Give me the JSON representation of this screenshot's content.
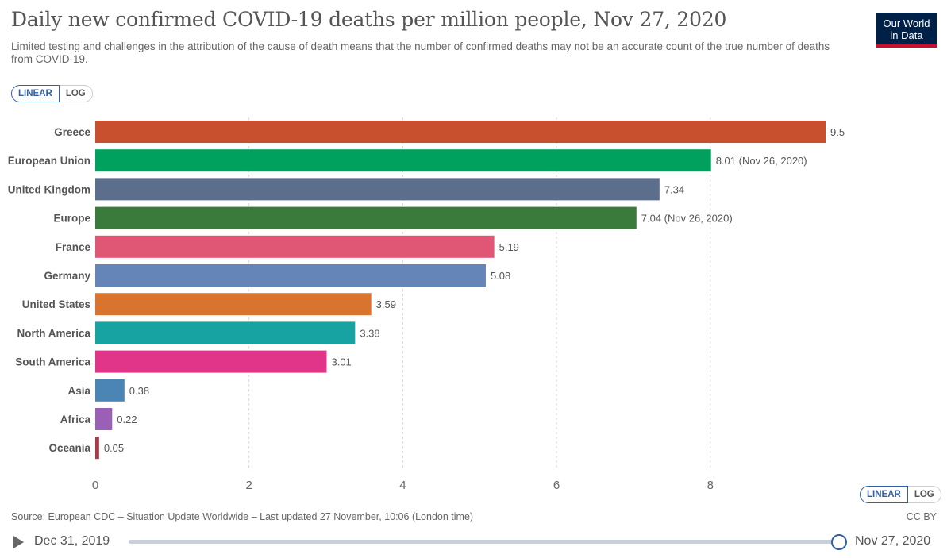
{
  "header": {
    "title": "Daily new confirmed COVID-19 deaths per million people, Nov 27, 2020",
    "subtitle": "Limited testing and challenges in the attribution of the cause of death means that the number of confirmed deaths may not be an accurate count of the true number of deaths from COVID-19.",
    "logo_line1": "Our World",
    "logo_line2": "in Data"
  },
  "controls": {
    "linear_label": "LINEAR",
    "log_label": "LOG"
  },
  "footer": {
    "source": "Source: European CDC – Situation Update Worldwide – Last updated 27 November, 10:06 (London time)",
    "license": "CC BY"
  },
  "timeline": {
    "start_label": "Dec 31, 2019",
    "end_label": "Nov 27, 2020",
    "position": 1.0
  },
  "chart_data": {
    "type": "bar",
    "orientation": "horizontal",
    "title": "Daily new confirmed COVID-19 deaths per million people, Nov 27, 2020",
    "xlabel": "",
    "ylabel": "",
    "xlim": [
      0,
      9.5
    ],
    "xticks": [
      0,
      2,
      4,
      6,
      8
    ],
    "grid": true,
    "categories": [
      "Greece",
      "European Union",
      "United Kingdom",
      "Europe",
      "France",
      "Germany",
      "United States",
      "North America",
      "South America",
      "Asia",
      "Africa",
      "Oceania"
    ],
    "values": [
      9.5,
      8.01,
      7.34,
      7.04,
      5.19,
      5.08,
      3.59,
      3.38,
      3.01,
      0.38,
      0.22,
      0.05
    ],
    "value_labels": [
      "9.5",
      "8.01 (Nov 26, 2020)",
      "7.34",
      "7.04 (Nov 26, 2020)",
      "5.19",
      "5.08",
      "3.59",
      "3.38",
      "3.01",
      "0.38",
      "0.22",
      "0.05"
    ],
    "colors": [
      "#c9502e",
      "#00a15f",
      "#5b6f8c",
      "#3a7a3a",
      "#e05776",
      "#6585b8",
      "#d9742f",
      "#18a3a3",
      "#e1358a",
      "#4a85b5",
      "#9a60b5",
      "#a73a4a"
    ]
  }
}
